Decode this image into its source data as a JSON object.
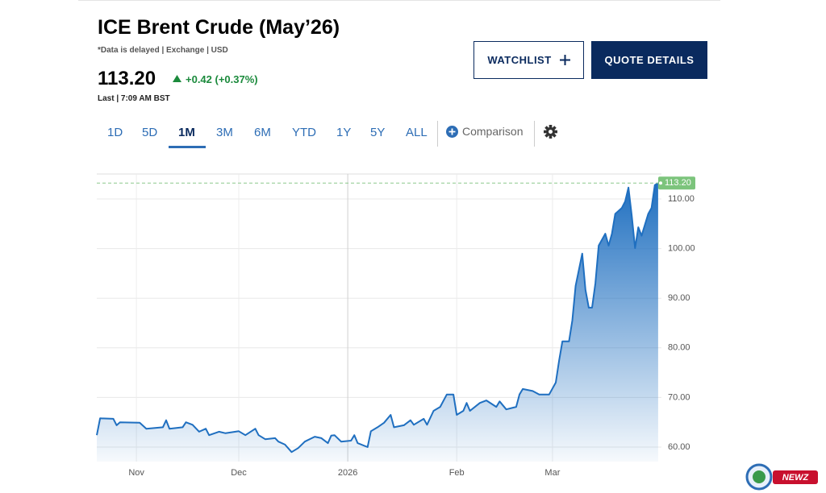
{
  "header": {
    "title": "ICE Brent Crude (May’26)",
    "subtitle": "*Data is delayed | Exchange | USD",
    "price": "113.20",
    "change": "+0.42 (+0.37%)",
    "last": "Last | 7:09 AM BST"
  },
  "buttons": {
    "watchlist": "WATCHLIST",
    "quote_details": "QUOTE DETAILS"
  },
  "tabs": [
    "1D",
    "5D",
    "1M",
    "3M",
    "6M",
    "YTD",
    "1Y",
    "5Y",
    "ALL"
  ],
  "active_tab": 2,
  "comparison": "Comparison",
  "watermark": "NEWZ",
  "chart_data": {
    "type": "area",
    "color": "#1f6fc0",
    "grid": true,
    "last_value": 113.2,
    "last_label": "113.20",
    "x": [
      0,
      1,
      5,
      6,
      7,
      13,
      15,
      20,
      21,
      22,
      26,
      27,
      29,
      31,
      33,
      34,
      37,
      39,
      43,
      45,
      48,
      49,
      51,
      54,
      55,
      57,
      59,
      61,
      63,
      66,
      68,
      70,
      71,
      72,
      74,
      77,
      78,
      79,
      82,
      83,
      85,
      87,
      89,
      90,
      93,
      95,
      96,
      99,
      100,
      102,
      104,
      106,
      108,
      109,
      111,
      112,
      113,
      116,
      118,
      121,
      122,
      124,
      127,
      128,
      129,
      132,
      134,
      137,
      139,
      140,
      141,
      143,
      144,
      145,
      147,
      148,
      149,
      150,
      151,
      152,
      154,
      155,
      156,
      157,
      159,
      160,
      161,
      162,
      163,
      164,
      165,
      167,
      168,
      169,
      170
    ],
    "values": [
      62.4,
      65.8,
      65.7,
      64.4,
      65,
      64.9,
      63.7,
      64,
      65.4,
      63.7,
      64,
      65,
      64.5,
      63.1,
      63.7,
      62.4,
      63.1,
      62.8,
      63.2,
      62.4,
      63.7,
      62.4,
      61.6,
      61.8,
      61.1,
      60.5,
      59,
      59.8,
      61.1,
      62.1,
      61.8,
      60.8,
      62.3,
      62.4,
      61.1,
      61.3,
      62.4,
      60.8,
      60,
      63.2,
      64,
      64.9,
      66.5,
      64,
      64.4,
      65.4,
      64.5,
      65.7,
      64.5,
      67.3,
      68.1,
      70.6,
      70.6,
      66.5,
      67.3,
      68.9,
      67.3,
      68.9,
      69.4,
      68.1,
      69.2,
      67.6,
      68.1,
      70.6,
      71.7,
      71.3,
      70.6,
      70.6,
      73,
      77.4,
      81.3,
      81.3,
      85.5,
      92.5,
      99,
      91.7,
      88.1,
      88.1,
      93,
      100.6,
      103,
      100.6,
      103,
      107,
      108.2,
      109.5,
      112.3,
      106.6,
      100.1,
      104.3,
      102.6,
      107,
      108.2,
      112.8,
      113.2
    ],
    "xlim": [
      0,
      171
    ],
    "xticks": [
      {
        "value": 12,
        "label": "Nov"
      },
      {
        "value": 43,
        "label": "Dec"
      },
      {
        "value": 76,
        "label": "2026"
      },
      {
        "value": 109,
        "label": "Feb"
      },
      {
        "value": 138,
        "label": "Mar"
      }
    ],
    "ylim": [
      57.08,
      115.03
    ],
    "yticks": [
      {
        "value": 60,
        "label": "60.00"
      },
      {
        "value": 70,
        "label": "70.00"
      },
      {
        "value": 80,
        "label": "80.00"
      },
      {
        "value": 90,
        "label": "90.00"
      },
      {
        "value": 100,
        "label": "100.00"
      },
      {
        "value": 110,
        "label": "110.00"
      }
    ]
  }
}
